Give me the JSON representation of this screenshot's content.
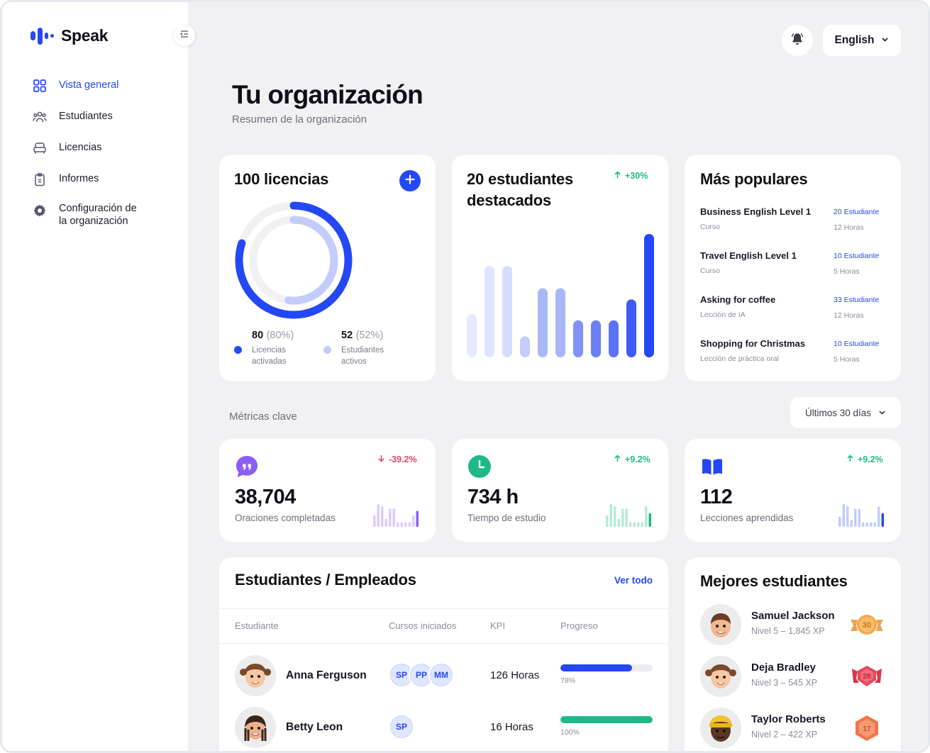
{
  "app": {
    "name": "Speak",
    "brand_color": "#2448f5"
  },
  "sidebar": {
    "items": [
      {
        "label": "Vista general",
        "icon": "grid-icon",
        "active": true
      },
      {
        "label": "Estudiantes",
        "icon": "users-icon",
        "active": false
      },
      {
        "label": "Licencias",
        "icon": "armchair-icon",
        "active": false
      },
      {
        "label": "Informes",
        "icon": "clipboard-icon",
        "active": false
      },
      {
        "label": "Configuración de la organización",
        "icon": "gear-icon",
        "active": false
      }
    ]
  },
  "header": {
    "language": "English"
  },
  "page": {
    "title": "Tu organización",
    "subtitle": "Resumen de la organización"
  },
  "licenses": {
    "title": "100 licencias",
    "activated": {
      "count": "80",
      "pct": "(80%)",
      "label": "Licencias activadas",
      "fraction": 0.8,
      "color": "#2448f5"
    },
    "active_students": {
      "count": "52",
      "pct": "(52%)",
      "label": "Estudiantes activos",
      "fraction": 0.52,
      "color": "#c3ccfa"
    }
  },
  "featured": {
    "title": "20 estudiantes destacados",
    "trend": "+30%",
    "bars": [
      0.35,
      0.74,
      0.74,
      0.17,
      0.56,
      0.56,
      0.3,
      0.3,
      0.3,
      0.47,
      1.0
    ]
  },
  "popular": {
    "title": "Más populares",
    "items": [
      {
        "name": "Business English Level 1",
        "type": "Curso",
        "count": "20 Estudiante",
        "hours": "12 Horas"
      },
      {
        "name": "Travel English Level 1",
        "type": "Curso",
        "count": "10 Estudiante",
        "hours": "5 Horas"
      },
      {
        "name": "Asking for coffee",
        "type": "Lección de IA",
        "count": "33 Estudiante",
        "hours": "12 Horas"
      },
      {
        "name": "Shopping for Christmas",
        "type": "Lección de práctica oral",
        "count": "10 Estudiante",
        "hours": "5 Horas"
      }
    ]
  },
  "metrics": {
    "label": "Métricas clave",
    "range": "Últimos 30 días",
    "cards": [
      {
        "value": "38,704",
        "label": "Oraciones completadas",
        "trend": "-39.2%",
        "direction": "down",
        "icon": "quote-bubble-icon",
        "color": "#8b5cf6",
        "light": "#d9ccfb"
      },
      {
        "value": "734 h",
        "label": "Tiempo de estudio",
        "trend": "+9.2%",
        "direction": "up",
        "icon": "clock-icon",
        "color": "#1fb889",
        "light": "#b5ead8"
      },
      {
        "value": "112",
        "label": "Lecciones aprendidas",
        "trend": "+9.2%",
        "direction": "up",
        "icon": "book-icon",
        "color": "#2448f5",
        "light": "#c3ccfa"
      }
    ]
  },
  "students": {
    "title": "Estudiantes / Empleados",
    "see_all": "Ver todo",
    "columns": [
      "Estudiante",
      "Cursos iniciados",
      "KPI",
      "Progreso"
    ],
    "rows": [
      {
        "name": "Anna Ferguson",
        "courses": [
          "SP",
          "PP",
          "MM"
        ],
        "kpi": "126 Horas",
        "progress": 0.78,
        "progress_label": "78%",
        "color": "#2448f5"
      },
      {
        "name": "Betty Leon",
        "courses": [
          "SP"
        ],
        "kpi": "16 Horas",
        "progress": 1.0,
        "progress_label": "100%",
        "color": "#1fb889"
      }
    ]
  },
  "best": {
    "title": "Mejores estudiantes",
    "items": [
      {
        "name": "Samuel Jackson",
        "info": "Nivel 5  – 1,845 XP",
        "badge": "30",
        "badge_color": "#f4a64a"
      },
      {
        "name": "Deja Bradley",
        "info": "Nivel 3  – 545 XP",
        "badge": "28",
        "badge_color": "#e5485d"
      },
      {
        "name": "Taylor Roberts",
        "info": "Nivel 2  – 422 XP",
        "badge": "17",
        "badge_color": "#f2764b"
      }
    ]
  }
}
